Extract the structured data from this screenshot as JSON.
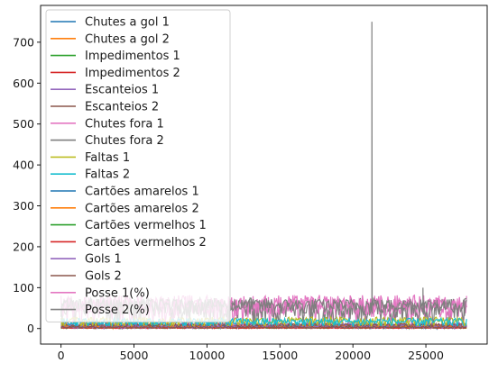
{
  "chart_data": {
    "type": "line",
    "title": "",
    "xlabel": "",
    "ylabel": "",
    "xlim": [
      -1400,
      29200
    ],
    "ylim": [
      -38,
      790
    ],
    "x_ticks": [
      0,
      5000,
      10000,
      15000,
      20000,
      25000
    ],
    "y_ticks": [
      0,
      100,
      200,
      300,
      400,
      500,
      600,
      700
    ],
    "n_points": 27800,
    "legend_position": "upper-left",
    "series": [
      {
        "name": "Chutes a gol 1",
        "color": "#1f77b4",
        "typical_range": [
          0,
          12
        ],
        "draw_order": 0
      },
      {
        "name": "Chutes a gol 2",
        "color": "#ff7f0e",
        "typical_range": [
          0,
          10
        ],
        "draw_order": 1
      },
      {
        "name": "Impedimentos 1",
        "color": "#2ca02c",
        "typical_range": [
          0,
          8
        ],
        "draw_order": 2
      },
      {
        "name": "Impedimentos 2",
        "color": "#d62728",
        "typical_range": [
          0,
          7
        ],
        "draw_order": 3
      },
      {
        "name": "Escanteios 1",
        "color": "#9467bd",
        "typical_range": [
          0,
          14
        ],
        "draw_order": 4
      },
      {
        "name": "Escanteios 2",
        "color": "#8c564b",
        "typical_range": [
          0,
          12
        ],
        "draw_order": 5
      },
      {
        "name": "Chutes fora 1",
        "color": "#e377c2",
        "typical_range": [
          0,
          82
        ],
        "draw_order": 6
      },
      {
        "name": "Chutes fora 2",
        "color": "#7f7f7f",
        "typical_range": [
          0,
          75
        ],
        "draw_order": 7
      },
      {
        "name": "Faltas 1",
        "color": "#bcbd22",
        "typical_range": [
          0,
          28
        ],
        "draw_order": 8
      },
      {
        "name": "Faltas 2",
        "color": "#17becf",
        "typical_range": [
          0,
          25
        ],
        "draw_order": 9
      },
      {
        "name": "Cartões amarelos 1",
        "color": "#1f77b4",
        "typical_range": [
          0,
          6
        ],
        "draw_order": 10
      },
      {
        "name": "Cartões amarelos 2",
        "color": "#ff7f0e",
        "typical_range": [
          0,
          6
        ],
        "draw_order": 11
      },
      {
        "name": "Cartões vermelhos 1",
        "color": "#2ca02c",
        "typical_range": [
          0,
          2
        ],
        "draw_order": 12
      },
      {
        "name": "Cartões vermelhos 2",
        "color": "#d62728",
        "typical_range": [
          0,
          2
        ],
        "draw_order": 13
      },
      {
        "name": "Gols 1",
        "color": "#9467bd",
        "typical_range": [
          0,
          6
        ],
        "draw_order": 14
      },
      {
        "name": "Gols 2",
        "color": "#8c564b",
        "typical_range": [
          0,
          5
        ],
        "draw_order": 15
      },
      {
        "name": "Posse 1(%)",
        "color": "#e377c2",
        "typical_range": [
          25,
          75
        ],
        "draw_order": 16
      },
      {
        "name": "Posse 2(%)",
        "color": "#7f7f7f",
        "typical_range": [
          28,
          72
        ],
        "draw_order": 17,
        "outliers": [
          {
            "x": 21300,
            "y": 750
          },
          {
            "x": 24800,
            "y": 100
          }
        ]
      }
    ]
  }
}
